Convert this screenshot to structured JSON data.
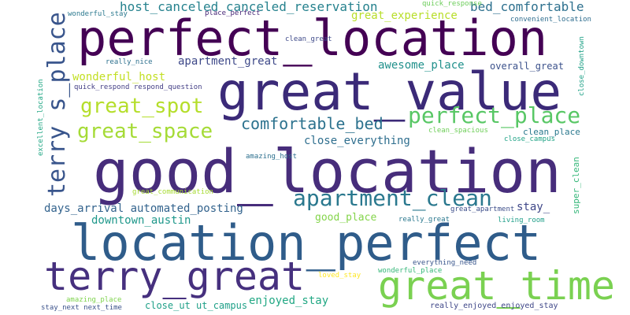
{
  "words": [
    {
      "text": "good_location",
      "color": "#472d7b"
    },
    {
      "text": "perfect_location",
      "color": "#440154"
    },
    {
      "text": "great_value",
      "color": "#3b2a78"
    },
    {
      "text": "location_perfect",
      "color": "#2f5c8a"
    },
    {
      "text": "terry_great",
      "color": "#46307e"
    },
    {
      "text": "great_time",
      "color": "#7ad151"
    },
    {
      "text": "terry s_place",
      "color": "#39558c"
    },
    {
      "text": "great_spot",
      "color": "#b5de2b"
    },
    {
      "text": "great_space",
      "color": "#a5db36"
    },
    {
      "text": "perfect_place",
      "color": "#58c765"
    },
    {
      "text": "apartment_clean",
      "color": "#2a788e"
    },
    {
      "text": "comfortable_bed",
      "color": "#2c728e"
    },
    {
      "text": "host_canceled canceled_reservation",
      "color": "#26828e"
    },
    {
      "text": "bed_comfortable",
      "color": "#2d708e"
    },
    {
      "text": "great_experience",
      "color": "#b8de29"
    },
    {
      "text": "wonderful_host",
      "color": "#c2df23"
    },
    {
      "text": "apartment_great",
      "color": "#3e4989"
    },
    {
      "text": "awesome_place",
      "color": "#21918c"
    },
    {
      "text": "overall_great",
      "color": "#3b518b"
    },
    {
      "text": "close_everything",
      "color": "#2e6e8e"
    },
    {
      "text": "days_arrival automated_posting",
      "color": "#33638d"
    },
    {
      "text": "downtown_austin",
      "color": "#1f988b"
    },
    {
      "text": "stay_",
      "color": "#3f4788"
    },
    {
      "text": "good_place",
      "color": "#84d44b"
    },
    {
      "text": "enjoyed_stay",
      "color": "#22a884"
    },
    {
      "text": "close_ut ut_campus",
      "color": "#1fa088"
    },
    {
      "text": "wonderful_stay",
      "color": "#2a788e"
    },
    {
      "text": "place_perfect",
      "color": "#482878"
    },
    {
      "text": "quick_response",
      "color": "#6ccd5a"
    },
    {
      "text": "convenient_location",
      "color": "#2e6d8e"
    },
    {
      "text": "clean_great",
      "color": "#3e4a89"
    },
    {
      "text": "really_nice",
      "color": "#2d708e"
    },
    {
      "text": "quick_respond respond_question",
      "color": "#433e85"
    },
    {
      "text": "clean_spacious",
      "color": "#6ece58"
    },
    {
      "text": "clean_place",
      "color": "#2a788e"
    },
    {
      "text": "close_campus",
      "color": "#20a386"
    },
    {
      "text": "close_downtown",
      "color": "#1fa187"
    },
    {
      "text": "excellent_location",
      "color": "#22a785"
    },
    {
      "text": "amazing_host",
      "color": "#2d708e"
    },
    {
      "text": "super_clean",
      "color": "#35b779"
    },
    {
      "text": "great_communication",
      "color": "#a8db34"
    },
    {
      "text": "great_apartment",
      "color": "#3d4e8a"
    },
    {
      "text": "really_great",
      "color": "#2a788e"
    },
    {
      "text": "living_room",
      "color": "#1f9e89"
    },
    {
      "text": "everything_need",
      "color": "#39568c"
    },
    {
      "text": "loved_stay",
      "color": "#fde725"
    },
    {
      "text": "wonderful_place",
      "color": "#35b779"
    },
    {
      "text": "amazing_place",
      "color": "#7fd34e"
    },
    {
      "text": "stay_next next_time",
      "color": "#3b528b"
    },
    {
      "text": "really_enjoyed enjoyed_stay",
      "color": "#3f4788"
    }
  ]
}
